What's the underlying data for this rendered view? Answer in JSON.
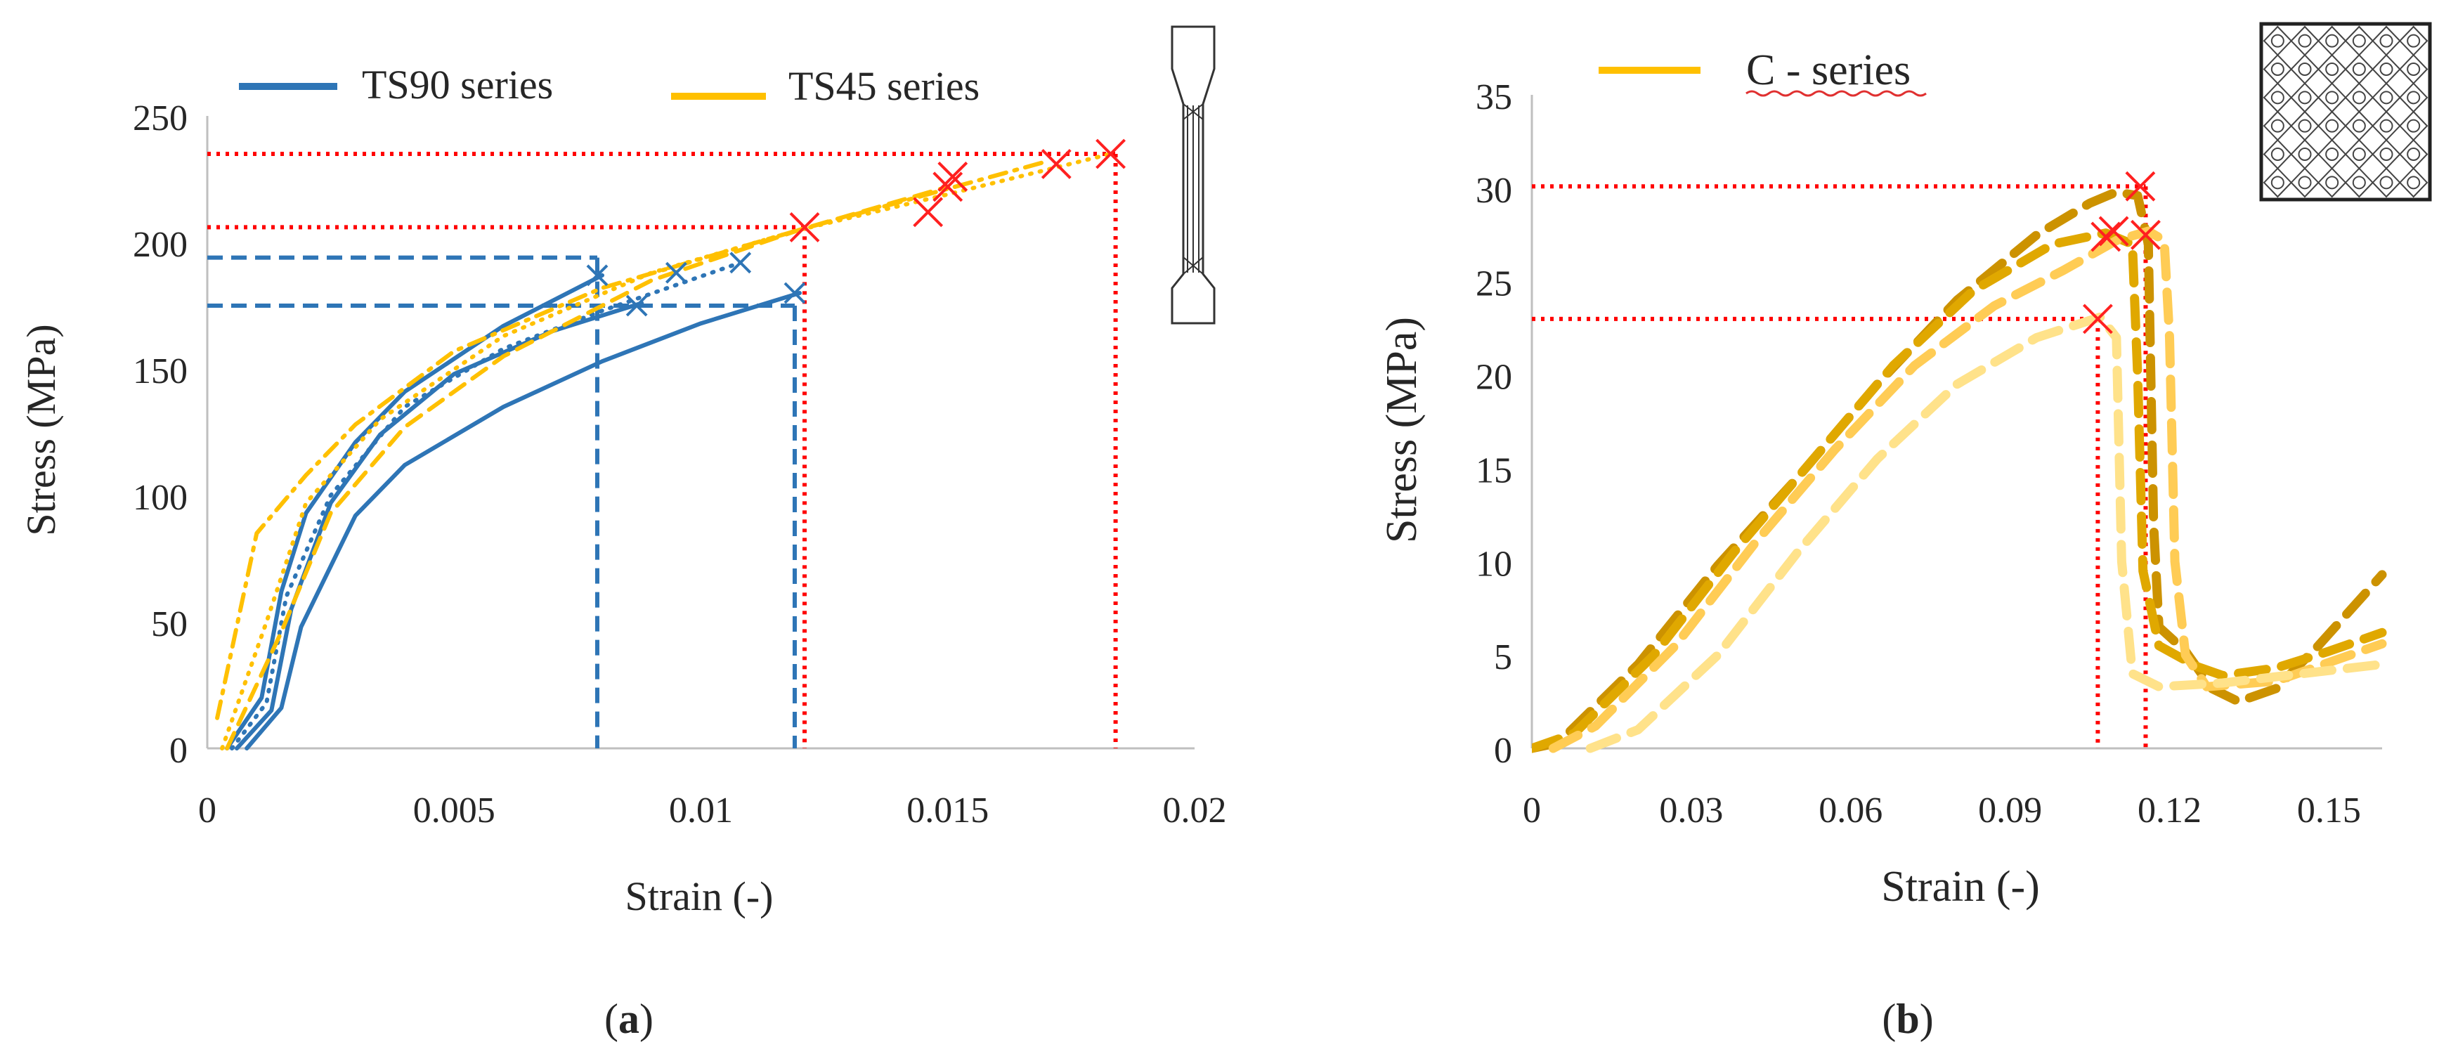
{
  "panels": [
    {
      "label_open": "(",
      "label_letter": "a",
      "label_close": ")"
    },
    {
      "label_open": "(",
      "label_letter": "b",
      "label_close": ")"
    }
  ],
  "chart_data": [
    {
      "type": "line",
      "xlabel": "Strain (-)",
      "ylabel": "Stress (MPa)",
      "xlim": [
        0,
        0.02
      ],
      "ylim": [
        0,
        250
      ],
      "xticks": [
        0,
        0.005,
        0.01,
        0.015,
        0.02
      ],
      "xtick_labels": [
        "0",
        "0.005",
        "0.01",
        "0.015",
        "0.02"
      ],
      "yticks": [
        0,
        50,
        100,
        150,
        200,
        250
      ],
      "ytick_labels": [
        "0",
        "50",
        "100",
        "150",
        "200",
        "250"
      ],
      "legend": [
        "TS90 series",
        "TS45 series"
      ],
      "legend_position": "top",
      "grid": false,
      "colors": {
        "TS90": "#2e75b6",
        "TS45": "#ffc000",
        "guide": "#ff0000"
      },
      "series": [
        {
          "group": "TS90",
          "style": "solid",
          "points": [
            [
              0.0004,
              0
            ],
            [
              0.0011,
              20
            ],
            [
              0.0015,
              62
            ],
            [
              0.002,
              93
            ],
            [
              0.003,
              121
            ],
            [
              0.004,
              141
            ],
            [
              0.006,
              167
            ],
            [
              0.008,
              187
            ]
          ]
        },
        {
          "group": "TS90",
          "style": "solid",
          "points": [
            [
              0.0006,
              0
            ],
            [
              0.0013,
              15
            ],
            [
              0.0017,
              55
            ],
            [
              0.0025,
              97
            ],
            [
              0.0035,
              124
            ],
            [
              0.005,
              148
            ],
            [
              0.007,
              165
            ],
            [
              0.0088,
              176
            ]
          ]
        },
        {
          "group": "TS90",
          "style": "solid",
          "points": [
            [
              0.0008,
              0
            ],
            [
              0.0015,
              16
            ],
            [
              0.0019,
              48
            ],
            [
              0.003,
              92
            ],
            [
              0.004,
              112
            ],
            [
              0.006,
              135
            ],
            [
              0.008,
              153
            ],
            [
              0.01,
              168
            ],
            [
              0.012,
              180
            ]
          ]
        },
        {
          "group": "TS90",
          "style": "dotted",
          "points": [
            [
              0.0005,
              0
            ],
            [
              0.0012,
              18
            ],
            [
              0.0016,
              60
            ],
            [
              0.0025,
              100
            ],
            [
              0.004,
              135
            ],
            [
              0.006,
              158
            ],
            [
              0.008,
              173
            ],
            [
              0.0108,
              192
            ]
          ]
        },
        {
          "group": "TS45",
          "style": "dashdot",
          "points": [
            [
              0.0002,
              12
            ],
            [
              0.001,
              85
            ],
            [
              0.002,
              108
            ],
            [
              0.003,
              128
            ],
            [
              0.005,
              157
            ],
            [
              0.008,
              182
            ],
            [
              0.012,
              205
            ],
            [
              0.017,
              232
            ]
          ]
        },
        {
          "group": "TS45",
          "style": "dashed",
          "points": [
            [
              0.0004,
              0
            ],
            [
              0.0015,
              46
            ],
            [
              0.0025,
              93
            ],
            [
              0.004,
              127
            ],
            [
              0.006,
              155
            ],
            [
              0.009,
              185
            ],
            [
              0.012,
              205
            ],
            [
              0.015,
              222
            ]
          ]
        },
        {
          "group": "TS45",
          "style": "dotted",
          "points": [
            [
              0.0003,
              0
            ],
            [
              0.0012,
              50
            ],
            [
              0.002,
              97
            ],
            [
              0.0035,
              130
            ],
            [
              0.006,
              163
            ],
            [
              0.009,
              188
            ],
            [
              0.012,
              205
            ],
            [
              0.015,
              219
            ],
            [
              0.0183,
              235
            ]
          ]
        }
      ],
      "failure_points": [
        {
          "group": "TS90",
          "x": 0.0079,
          "y": 187
        },
        {
          "group": "TS90",
          "x": 0.0087,
          "y": 175
        },
        {
          "group": "TS90",
          "x": 0.0095,
          "y": 188
        },
        {
          "group": "TS90",
          "x": 0.0108,
          "y": 192
        },
        {
          "group": "TS90",
          "x": 0.0119,
          "y": 180
        },
        {
          "group": "TS45",
          "x": 0.0121,
          "y": 206
        },
        {
          "group": "TS45",
          "x": 0.0146,
          "y": 212
        },
        {
          "group": "TS45",
          "x": 0.015,
          "y": 222
        },
        {
          "group": "TS45",
          "x": 0.0151,
          "y": 226
        },
        {
          "group": "TS45",
          "x": 0.0172,
          "y": 231
        },
        {
          "group": "TS45",
          "x": 0.0183,
          "y": 235
        }
      ],
      "guides": [
        {
          "color": "blue",
          "x": 0.0079,
          "y": 194
        },
        {
          "color": "blue",
          "x": 0.0119,
          "y": 175
        },
        {
          "color": "red",
          "x": 0.0121,
          "y": 206
        },
        {
          "color": "red",
          "x": 0.0184,
          "y": 235
        }
      ]
    },
    {
      "type": "line",
      "xlabel": "Strain (-)",
      "ylabel": "Stress (MPa)",
      "xlim": [
        0,
        0.16
      ],
      "ylim": [
        0,
        35
      ],
      "xticks": [
        0,
        0.03,
        0.06,
        0.09,
        0.12,
        0.15
      ],
      "xtick_labels": [
        "0",
        "0.03",
        "0.06",
        "0.09",
        "0.12",
        "0.15"
      ],
      "yticks": [
        0,
        5,
        10,
        15,
        20,
        25,
        30,
        35
      ],
      "ytick_labels": [
        "0",
        "5",
        "10",
        "15",
        "20",
        "25",
        "30",
        "35"
      ],
      "legend": [
        "C - series"
      ],
      "legend_position": "top-left",
      "grid": false,
      "colors": {
        "C": "#ffc000",
        "guide": "#ff0000"
      },
      "series": [
        {
          "group": "C",
          "color": "#cc9200",
          "points": [
            [
              0,
              0
            ],
            [
              0.005,
              0.3
            ],
            [
              0.02,
              4.5
            ],
            [
              0.035,
              9.8
            ],
            [
              0.05,
              14.5
            ],
            [
              0.065,
              19.5
            ],
            [
              0.08,
              24
            ],
            [
              0.095,
              27.5
            ],
            [
              0.105,
              29.2
            ],
            [
              0.11,
              29.8
            ],
            [
              0.114,
              29.6
            ],
            [
              0.116,
              27
            ],
            [
              0.117,
              12
            ],
            [
              0.118,
              6.5
            ],
            [
              0.123,
              5.2
            ],
            [
              0.128,
              3.2
            ],
            [
              0.133,
              2.5
            ],
            [
              0.14,
              3.2
            ],
            [
              0.148,
              5.5
            ],
            [
              0.16,
              9.3
            ]
          ]
        },
        {
          "group": "C",
          "color": "#e0a800",
          "points": [
            [
              0,
              0
            ],
            [
              0.008,
              0.8
            ],
            [
              0.023,
              5
            ],
            [
              0.038,
              10.5
            ],
            [
              0.053,
              15.5
            ],
            [
              0.068,
              20.5
            ],
            [
              0.083,
              24.5
            ],
            [
              0.098,
              27
            ],
            [
              0.108,
              27.6
            ],
            [
              0.113,
              27
            ],
            [
              0.114,
              20
            ],
            [
              0.115,
              9.5
            ],
            [
              0.118,
              5.5
            ],
            [
              0.125,
              4.4
            ],
            [
              0.13,
              3.9
            ],
            [
              0.14,
              4.3
            ],
            [
              0.15,
              5.2
            ],
            [
              0.16,
              6.2
            ]
          ]
        },
        {
          "group": "C",
          "color": "#ffcc55",
          "points": [
            [
              0.004,
              0
            ],
            [
              0.012,
              1.2
            ],
            [
              0.027,
              5.5
            ],
            [
              0.042,
              11
            ],
            [
              0.057,
              16
            ],
            [
              0.072,
              20.5
            ],
            [
              0.087,
              23.7
            ],
            [
              0.1,
              25.6
            ],
            [
              0.11,
              27.2
            ],
            [
              0.116,
              27.7
            ],
            [
              0.119,
              27.2
            ],
            [
              0.12,
              22
            ],
            [
              0.121,
              10
            ],
            [
              0.123,
              5
            ],
            [
              0.127,
              3.3
            ],
            [
              0.14,
              3.6
            ],
            [
              0.15,
              4.6
            ],
            [
              0.16,
              5.6
            ]
          ]
        },
        {
          "group": "C",
          "color": "#ffe28a",
          "points": [
            [
              0.011,
              0
            ],
            [
              0.02,
              1
            ],
            [
              0.035,
              5
            ],
            [
              0.05,
              10.5
            ],
            [
              0.065,
              15.5
            ],
            [
              0.08,
              19.5
            ],
            [
              0.095,
              22
            ],
            [
              0.107,
              23.1
            ],
            [
              0.11,
              22
            ],
            [
              0.111,
              10
            ],
            [
              0.113,
              4
            ],
            [
              0.118,
              3.3
            ],
            [
              0.13,
              3.5
            ],
            [
              0.145,
              4
            ],
            [
              0.16,
              4.5
            ]
          ]
        }
      ],
      "failure_points": [
        {
          "group": "C",
          "x": 0.1065,
          "y": 23
        },
        {
          "group": "C",
          "x": 0.108,
          "y": 27.4
        },
        {
          "group": "C",
          "x": 0.1095,
          "y": 27.7
        },
        {
          "group": "C",
          "x": 0.1145,
          "y": 30.1
        },
        {
          "group": "C",
          "x": 0.1155,
          "y": 27.5
        }
      ],
      "guides": [
        {
          "color": "red",
          "x": 0.1065,
          "y": 23
        },
        {
          "color": "red",
          "x": 0.1155,
          "y": 30.1
        }
      ]
    }
  ]
}
